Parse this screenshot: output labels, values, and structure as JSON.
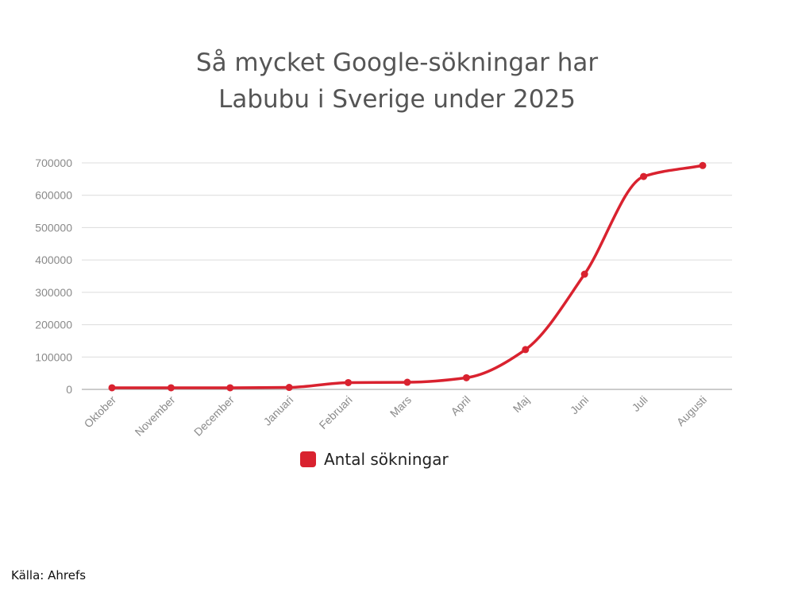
{
  "title_line1": "Så mycket Google-sökningar har",
  "title_line2": "Labubu i Sverige under 2025",
  "source": "Källa: Ahrefs",
  "colors": {
    "series": "#d9222f",
    "grid": "#dcdcdc",
    "axis": "#999999",
    "text": "#8a8a8a"
  },
  "chart_data": {
    "type": "line",
    "title": "Så mycket Google-sökningar har Labubu i Sverige under 2025",
    "xlabel": "",
    "ylabel": "",
    "categories": [
      "Oktober",
      "November",
      "December",
      "Januari",
      "Februari",
      "Mars",
      "April",
      "Maj",
      "Juni",
      "Juli",
      "Augusti"
    ],
    "series": [
      {
        "name": "Antal sökningar",
        "values": [
          5000,
          5000,
          5000,
          6000,
          21000,
          22000,
          36000,
          123000,
          356000,
          658000,
          692000
        ]
      }
    ],
    "ylim": [
      0,
      700000
    ],
    "yticks": [
      "0",
      "100000",
      "200000",
      "300000",
      "400000",
      "500000",
      "600000",
      "700000"
    ],
    "grid": true,
    "smooth": true,
    "legend_position": "bottom-center"
  }
}
